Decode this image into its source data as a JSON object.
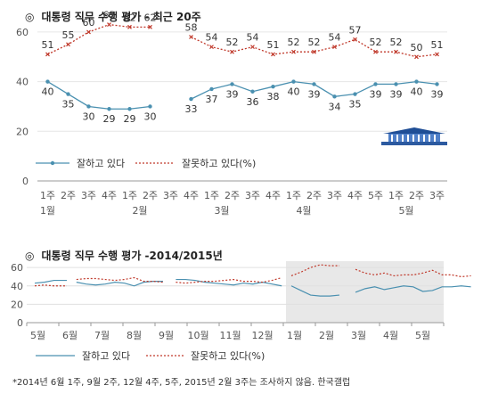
{
  "chart_data": [
    {
      "type": "line",
      "title": "대통령 직무 수행 평가 - 최근 20주",
      "title_mark": "◎",
      "ylim": [
        0,
        65
      ],
      "yticks": [
        0,
        20,
        40,
        60
      ],
      "week_labels": [
        "1주",
        "2주",
        "3주",
        "4주",
        "1주",
        "2주",
        "3주",
        "4주",
        "1주",
        "2주",
        "3주",
        "4주",
        "1주",
        "2주",
        "3주",
        "4주",
        "5주",
        "1주",
        "2주",
        "3주"
      ],
      "month_labels": [
        {
          "label": "1월",
          "at": 0
        },
        {
          "label": "2월",
          "at": 4.5
        },
        {
          "label": "3월",
          "at": 8.5
        },
        {
          "label": "4월",
          "at": 12.5
        },
        {
          "label": "5월",
          "at": 17.5
        }
      ],
      "series": [
        {
          "name": "잘하고 있다",
          "color": "#4a90b0",
          "values": [
            40,
            35,
            30,
            29,
            29,
            30,
            null,
            33,
            37,
            39,
            36,
            38,
            40,
            39,
            34,
            35,
            39,
            39,
            40,
            39
          ]
        },
        {
          "name": "잘못하고 있다(%)",
          "color": "#c0392b",
          "values": [
            51,
            55,
            60,
            63,
            62,
            62,
            null,
            58,
            54,
            52,
            54,
            51,
            52,
            52,
            54,
            57,
            52,
            52,
            50,
            51
          ]
        }
      ]
    },
    {
      "type": "line",
      "title": "대통령 직무 수행 평가 -2014/2015년",
      "title_mark": "◎",
      "ylim": [
        0,
        65
      ],
      "yticks": [
        0,
        20,
        40,
        60
      ],
      "month_labels": [
        "5월",
        "6월",
        "7월",
        "8월",
        "9월",
        "10월",
        "11월",
        "12월",
        "1월",
        "2월",
        "3월",
        "4월",
        "5월"
      ],
      "highlight_from_month": 8,
      "series": [
        {
          "name": "잘하고 있다",
          "color": "#4a90b0",
          "segments": [
            [
              [
                0.0,
                43
              ],
              [
                0.3,
                44
              ],
              [
                0.6,
                46
              ],
              [
                0.9,
                46
              ],
              [
                1.0,
                46
              ]
            ],
            [
              [
                1.3,
                44
              ],
              [
                1.6,
                42
              ],
              [
                1.9,
                41
              ],
              [
                2.2,
                42
              ],
              [
                2.5,
                44
              ],
              [
                2.8,
                43
              ],
              [
                3.1,
                40
              ],
              [
                3.4,
                44
              ],
              [
                3.7,
                45
              ],
              [
                4.0,
                45
              ]
            ],
            [
              [
                4.4,
                47
              ],
              [
                4.7,
                47
              ],
              [
                5.0,
                46
              ],
              [
                5.3,
                44
              ],
              [
                5.6,
                43
              ],
              [
                5.9,
                42
              ],
              [
                6.2,
                41
              ],
              [
                6.5,
                43
              ],
              [
                6.8,
                42
              ],
              [
                7.1,
                44
              ],
              [
                7.4,
                42
              ],
              [
                7.7,
                40
              ]
            ],
            [
              [
                8.0,
                40
              ],
              [
                8.3,
                35
              ],
              [
                8.6,
                30
              ],
              [
                8.9,
                29
              ],
              [
                9.2,
                29
              ],
              [
                9.5,
                30
              ]
            ],
            [
              [
                10.0,
                33
              ],
              [
                10.3,
                37
              ],
              [
                10.6,
                39
              ],
              [
                10.9,
                36
              ],
              [
                11.2,
                38
              ],
              [
                11.5,
                40
              ],
              [
                11.8,
                39
              ],
              [
                12.1,
                34
              ],
              [
                12.4,
                35
              ],
              [
                12.7,
                39
              ],
              [
                13.0,
                39
              ],
              [
                13.3,
                40
              ],
              [
                13.6,
                39
              ]
            ]
          ]
        },
        {
          "name": "잘못하고 있다(%)",
          "color": "#c0392b",
          "segments": [
            [
              [
                0.0,
                40
              ],
              [
                0.3,
                41
              ],
              [
                0.6,
                40
              ],
              [
                0.9,
                40
              ],
              [
                1.0,
                40
              ]
            ],
            [
              [
                1.3,
                47
              ],
              [
                1.6,
                48
              ],
              [
                1.9,
                48
              ],
              [
                2.2,
                47
              ],
              [
                2.5,
                46
              ],
              [
                2.8,
                47
              ],
              [
                3.1,
                49
              ],
              [
                3.4,
                45
              ],
              [
                3.7,
                45
              ],
              [
                4.0,
                44
              ]
            ],
            [
              [
                4.4,
                44
              ],
              [
                4.7,
                43
              ],
              [
                5.0,
                44
              ],
              [
                5.3,
                45
              ],
              [
                5.6,
                45
              ],
              [
                5.9,
                46
              ],
              [
                6.2,
                47
              ],
              [
                6.5,
                45
              ],
              [
                6.8,
                45
              ],
              [
                7.1,
                44
              ],
              [
                7.4,
                46
              ],
              [
                7.7,
                49
              ]
            ],
            [
              [
                8.0,
                51
              ],
              [
                8.3,
                55
              ],
              [
                8.6,
                60
              ],
              [
                8.9,
                63
              ],
              [
                9.2,
                62
              ],
              [
                9.5,
                62
              ]
            ],
            [
              [
                10.0,
                58
              ],
              [
                10.3,
                54
              ],
              [
                10.6,
                52
              ],
              [
                10.9,
                54
              ],
              [
                11.2,
                51
              ],
              [
                11.5,
                52
              ],
              [
                11.8,
                52
              ],
              [
                12.1,
                54
              ],
              [
                12.4,
                57
              ],
              [
                12.7,
                52
              ],
              [
                13.0,
                52
              ],
              [
                13.3,
                50
              ],
              [
                13.6,
                51
              ]
            ]
          ]
        }
      ]
    }
  ],
  "footnote": "*2014년 6월 1주, 9월 2주, 12월 4주, 5주, 2015년 2월 3주는 조사하지 않음. 한국갤럽"
}
